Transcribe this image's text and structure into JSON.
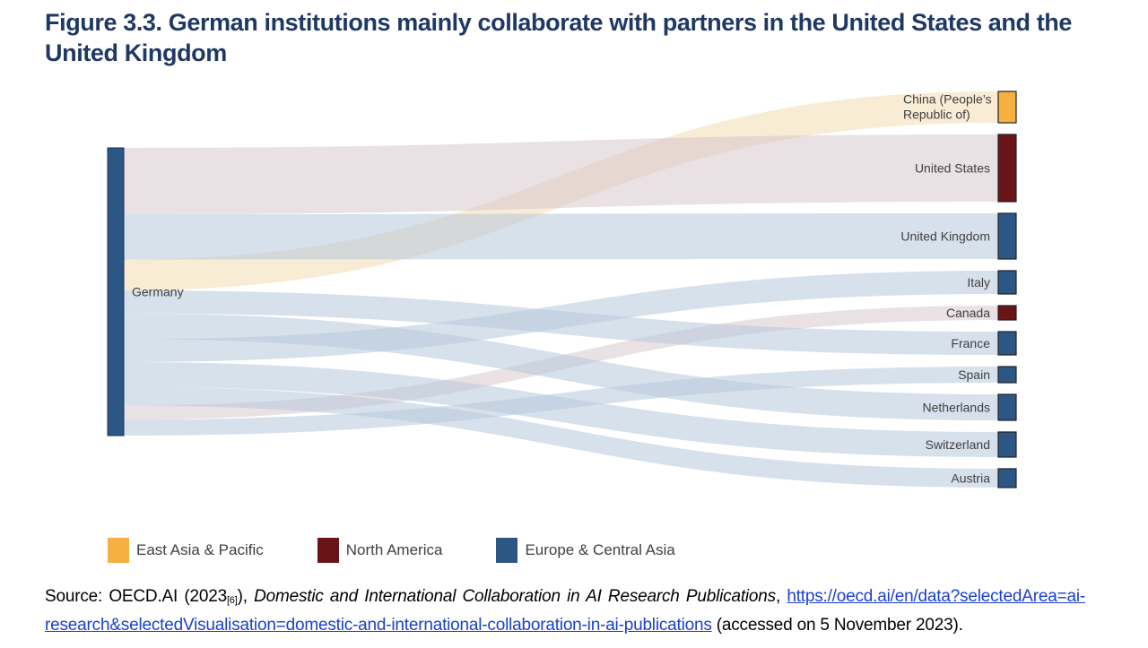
{
  "figure": {
    "title": "Figure 3.3. German institutions mainly collaborate with partners in the United States and the United Kingdom"
  },
  "chart_data": {
    "type": "sankey",
    "source_node": {
      "name": "Germany",
      "region": "Europe & Central Asia"
    },
    "flows": [
      {
        "target": "China (People’s Republic of)",
        "region": "East Asia & Pacific",
        "value": 35
      },
      {
        "target": "United States",
        "region": "North America",
        "value": 75
      },
      {
        "target": "United Kingdom",
        "region": "Europe & Central Asia",
        "value": 51
      },
      {
        "target": "Italy",
        "region": "Europe & Central Asia",
        "value": 26
      },
      {
        "target": "Canada",
        "region": "North America",
        "value": 16
      },
      {
        "target": "France",
        "region": "Europe & Central Asia",
        "value": 26
      },
      {
        "target": "Spain",
        "region": "Europe & Central Asia",
        "value": 18
      },
      {
        "target": "Netherlands",
        "region": "Europe & Central Asia",
        "value": 29
      },
      {
        "target": "Switzerland",
        "region": "Europe & Central Asia",
        "value": 28
      },
      {
        "target": "Austria",
        "region": "Europe & Central Asia",
        "value": 21
      }
    ],
    "legend": [
      {
        "name": "East Asia & Pacific",
        "color": "#f5b041"
      },
      {
        "name": "North America",
        "color": "#6b1417"
      },
      {
        "name": "Europe & Central Asia",
        "color": "#2c5684"
      }
    ],
    "region_colors": {
      "East Asia & Pacific": "#f5b041",
      "North America": "#6b1417",
      "Europe & Central Asia": "#2c5684"
    },
    "link_colors": {
      "East Asia & Pacific": "#f2ddb0",
      "North America": "#d7c8cc",
      "Europe & Central Asia": "#b6c8dc"
    }
  },
  "source": {
    "prefix": "Source: OECD.AI (2023",
    "ref": "[6]",
    "mid": "), ",
    "title": "Domestic and International Collaboration in AI Research Publications",
    "sep": ", ",
    "url": "https://oecd.ai/en/data?selectedArea=ai-research&selectedVisualisation=domestic-and-international-collaboration-in-ai-publications",
    "suffix": " (accessed on 5 November 2023)."
  }
}
